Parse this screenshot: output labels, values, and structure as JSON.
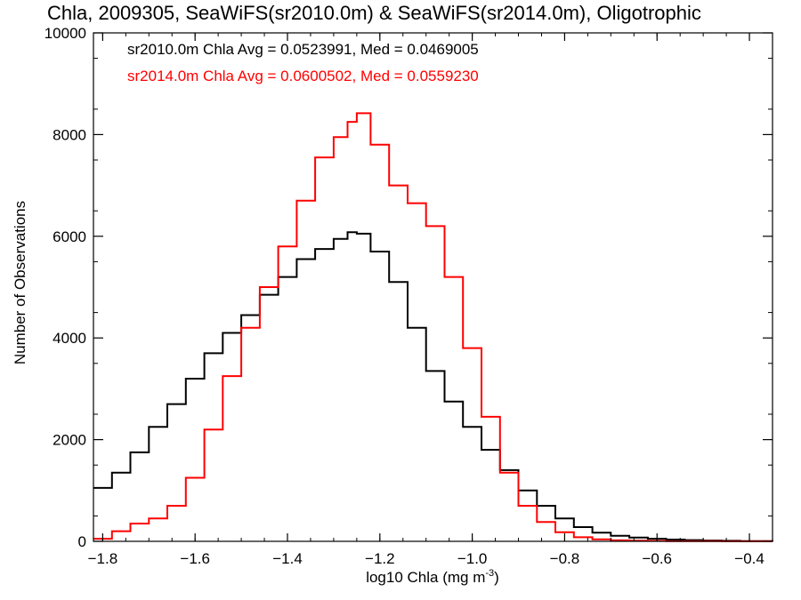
{
  "chart_data": {
    "type": "line",
    "title": "Chla, 2009305, SeaWiFS(sr2010.0m) & SeaWiFS(sr2014.0m), Oligotrophic",
    "xlabel": "log10 Chla (mg m",
    "xlabel_sup": "-3",
    "xlabel_end": ")",
    "ylabel": "Number of Observations",
    "xlim": [
      -1.82,
      -0.35
    ],
    "ylim": [
      0,
      10000
    ],
    "x_ticks": [
      -1.8,
      -1.6,
      -1.4,
      -1.2,
      -1.0,
      -0.8,
      -0.6,
      -0.4
    ],
    "x_tick_labels": [
      "−1.8",
      "−1.6",
      "−1.4",
      "−1.2",
      "−1.0",
      "−0.8",
      "−0.6",
      "−0.4"
    ],
    "y_ticks": [
      0,
      2000,
      4000,
      6000,
      8000,
      10000
    ],
    "y_tick_labels": [
      "0",
      "2000",
      "4000",
      "6000",
      "8000",
      "10000"
    ],
    "step": true,
    "annotations": [
      {
        "text": "sr2010.0m Chla Avg = 0.0523991, Med = 0.0469005",
        "color": "#000000"
      },
      {
        "text": "sr2014.0m Chla Avg = 0.0600502, Med = 0.0559230",
        "color": "#ff0000"
      }
    ],
    "series": [
      {
        "color": "#000000",
        "x": [
          -1.82,
          -1.78,
          -1.74,
          -1.7,
          -1.66,
          -1.62,
          -1.58,
          -1.54,
          -1.5,
          -1.46,
          -1.42,
          -1.38,
          -1.34,
          -1.3,
          -1.27,
          -1.25,
          -1.22,
          -1.18,
          -1.14,
          -1.1,
          -1.06,
          -1.02,
          -0.98,
          -0.94,
          -0.9,
          -0.86,
          -0.82,
          -0.78,
          -0.74,
          -0.7,
          -0.66,
          -0.62,
          -0.58,
          -0.54,
          -0.5,
          -0.46,
          -0.42,
          -0.38,
          -0.35
        ],
        "y": [
          1050,
          1350,
          1750,
          2250,
          2700,
          3200,
          3700,
          4100,
          4450,
          4850,
          5200,
          5550,
          5750,
          5950,
          6080,
          6050,
          5700,
          5100,
          4200,
          3350,
          2750,
          2250,
          1800,
          1400,
          1000,
          700,
          450,
          280,
          170,
          110,
          75,
          50,
          35,
          25,
          15,
          10,
          6,
          3,
          2
        ]
      },
      {
        "color": "#ff0000",
        "x": [
          -1.82,
          -1.78,
          -1.74,
          -1.7,
          -1.66,
          -1.62,
          -1.58,
          -1.54,
          -1.5,
          -1.46,
          -1.42,
          -1.38,
          -1.34,
          -1.3,
          -1.27,
          -1.25,
          -1.22,
          -1.18,
          -1.14,
          -1.1,
          -1.06,
          -1.02,
          -0.98,
          -0.94,
          -0.9,
          -0.86,
          -0.82,
          -0.78,
          -0.74,
          -0.7,
          -0.66,
          -0.62,
          -0.58,
          -0.54,
          -0.5,
          -0.46,
          -0.42,
          -0.38,
          -0.35
        ],
        "y": [
          50,
          200,
          350,
          450,
          700,
          1250,
          2200,
          3250,
          4200,
          5000,
          5800,
          6700,
          7550,
          7950,
          8250,
          8420,
          7800,
          7000,
          6650,
          6200,
          5200,
          3800,
          2450,
          1350,
          700,
          380,
          180,
          80,
          40,
          20,
          12,
          8,
          5,
          4,
          3,
          2,
          2,
          1,
          1
        ]
      }
    ]
  }
}
